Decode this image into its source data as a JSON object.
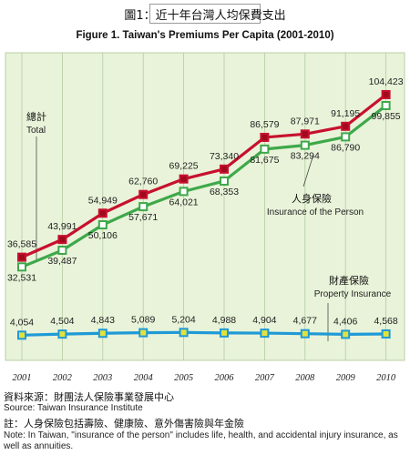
{
  "header": {
    "title_cn": "圖1：近十年台灣人均保費支出"
  },
  "chart_data": {
    "type": "line",
    "title": "Figure 1. Taiwan's Premiums Per Capita (2001-2010)",
    "x": [
      "2001",
      "2002",
      "2003",
      "2004",
      "2005",
      "2006",
      "2007",
      "2008",
      "2009",
      "2010"
    ],
    "ylim": [
      0,
      112000
    ],
    "grid": "vertical",
    "series": [
      {
        "name": "總計",
        "name_en": "Total",
        "color": "#c8102e",
        "marker_fill": "#a00a1e",
        "values": [
          36585,
          43991,
          54949,
          62760,
          69225,
          73340,
          86579,
          87971,
          91195,
          104423
        ],
        "labels": [
          "36,585",
          "43,991",
          "54,949",
          "62,760",
          "69,225",
          "73,340",
          "86,579",
          "87,971",
          "91,195",
          "104,423"
        ]
      },
      {
        "name": "人身保險",
        "name_en": "Insurance of the Person",
        "color": "#3ea84a",
        "marker_fill": "#ffffff",
        "values": [
          32531,
          39487,
          50106,
          57671,
          64021,
          68353,
          81675,
          83294,
          86790,
          99855
        ],
        "labels": [
          "32,531",
          "39,487",
          "50,106",
          "57,671",
          "64,021",
          "68,353",
          "81,675",
          "83,294",
          "86,790",
          "99,855"
        ]
      },
      {
        "name": "財產保險",
        "name_en": "Property Insurance",
        "color": "#1f9ad6",
        "marker_fill": "#e4e23a",
        "values": [
          4054,
          4504,
          4843,
          5089,
          5204,
          4988,
          4904,
          4677,
          4406,
          4568
        ],
        "labels": [
          "4,054",
          "4,504",
          "4,843",
          "5,089",
          "5,204",
          "4,988",
          "4,904",
          "4,677",
          "4,406",
          "4,568"
        ]
      }
    ]
  },
  "footer": {
    "source_cn": "資料來源：財團法人保險事業發展中心",
    "source_en": "Source: Taiwan Insurance Institute",
    "note_cn": "註：人身保險包括壽險、健康險、意外傷害險與年金險",
    "note_en": "Note: In Taiwan, \"insurance of the person\" includes life, health, and accidental injury insurance, as well as annuities."
  }
}
